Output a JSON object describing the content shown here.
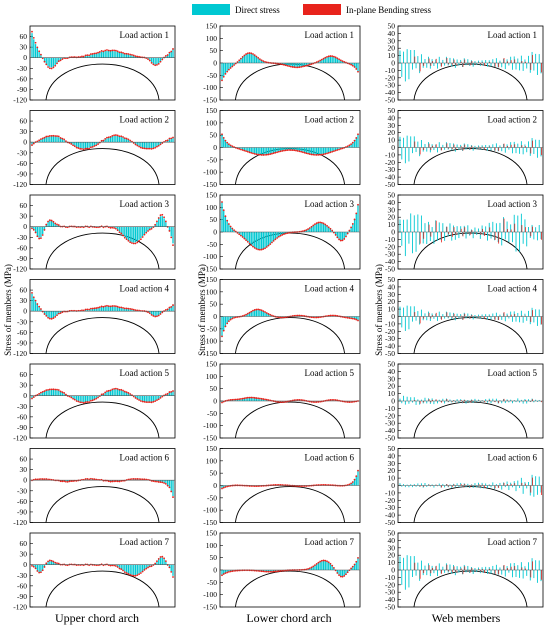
{
  "legend": {
    "items": [
      {
        "label": "Direct stress",
        "color": "#00c8d2"
      },
      {
        "label": "In-plane Bending stress",
        "color": "#e8231c"
      }
    ]
  },
  "column_titles": [
    "Upper chord arch",
    "Lower chord arch",
    "Web members"
  ],
  "y_axis_label": "Stress of members (MPa)",
  "colors": {
    "direct": "#00c8d2",
    "bending": "#e8231c",
    "arch": "#000000"
  },
  "chart_data": {
    "type": "bar",
    "grid": false,
    "panel_label_prefix": "Load action",
    "load_actions": [
      1,
      2,
      3,
      4,
      5,
      6,
      7
    ],
    "columns": [
      {
        "title": "Upper chord arch",
        "ylim": [
          -120,
          90
        ],
        "yticks": [
          -120,
          -90,
          -60,
          -30,
          0,
          30,
          60
        ],
        "panels": [
          {
            "load_action": 1,
            "pattern": "S",
            "amp": 70,
            "bend": 0.45
          },
          {
            "load_action": 2,
            "pattern": "W",
            "amp": 20,
            "bend": 0.45
          },
          {
            "load_action": 3,
            "pattern": "M",
            "amp": 60,
            "bend": 0.5
          },
          {
            "load_action": 4,
            "pattern": "S",
            "amp": 50,
            "bend": 0.35
          },
          {
            "load_action": 5,
            "pattern": "W",
            "amp": 20,
            "bend": 0.4
          },
          {
            "load_action": 6,
            "pattern": "E",
            "amp": 45,
            "bend": 0.3
          },
          {
            "load_action": 7,
            "pattern": "M",
            "amp": 40,
            "bend": 0.45
          }
        ]
      },
      {
        "title": "Lower chord arch",
        "ylim": [
          -150,
          150
        ],
        "yticks": [
          -150,
          -100,
          -50,
          0,
          50,
          100,
          150
        ],
        "panels": [
          {
            "load_action": 1,
            "pattern": "L1",
            "amp": 70,
            "bend": 0.05
          },
          {
            "load_action": 2,
            "pattern": "L2",
            "amp": 60,
            "bend": 0.05
          },
          {
            "load_action": 3,
            "pattern": "L3",
            "amp": 110,
            "bend": 0.05
          },
          {
            "load_action": 4,
            "pattern": "L4",
            "amp": 80,
            "bend": 0.05
          },
          {
            "load_action": 5,
            "pattern": "L5",
            "amp": 30,
            "bend": 0.05
          },
          {
            "load_action": 6,
            "pattern": "L6",
            "amp": 60,
            "bend": 0.05
          },
          {
            "load_action": 7,
            "pattern": "L7",
            "amp": 70,
            "bend": 0.05
          }
        ]
      },
      {
        "title": "Web members",
        "ylim": [
          -50,
          50
        ],
        "yticks": [
          -50,
          -40,
          -30,
          -20,
          -10,
          0,
          10,
          20,
          30,
          40,
          50
        ],
        "panels": [
          {
            "load_action": 1,
            "pattern": "F",
            "amp": 28,
            "bend": 0.7
          },
          {
            "load_action": 2,
            "pattern": "F",
            "amp": 24,
            "bend": 0.55
          },
          {
            "load_action": 3,
            "pattern": "F3",
            "amp": 38,
            "bend": 0.8
          },
          {
            "load_action": 4,
            "pattern": "F",
            "amp": 22,
            "bend": 0.9
          },
          {
            "load_action": 5,
            "pattern": "F5",
            "amp": 12,
            "bend": 0.6
          },
          {
            "load_action": 6,
            "pattern": "F6",
            "amp": 22,
            "bend": 0.6
          },
          {
            "load_action": 7,
            "pattern": "F",
            "amp": 30,
            "bend": 0.6
          }
        ]
      }
    ]
  }
}
